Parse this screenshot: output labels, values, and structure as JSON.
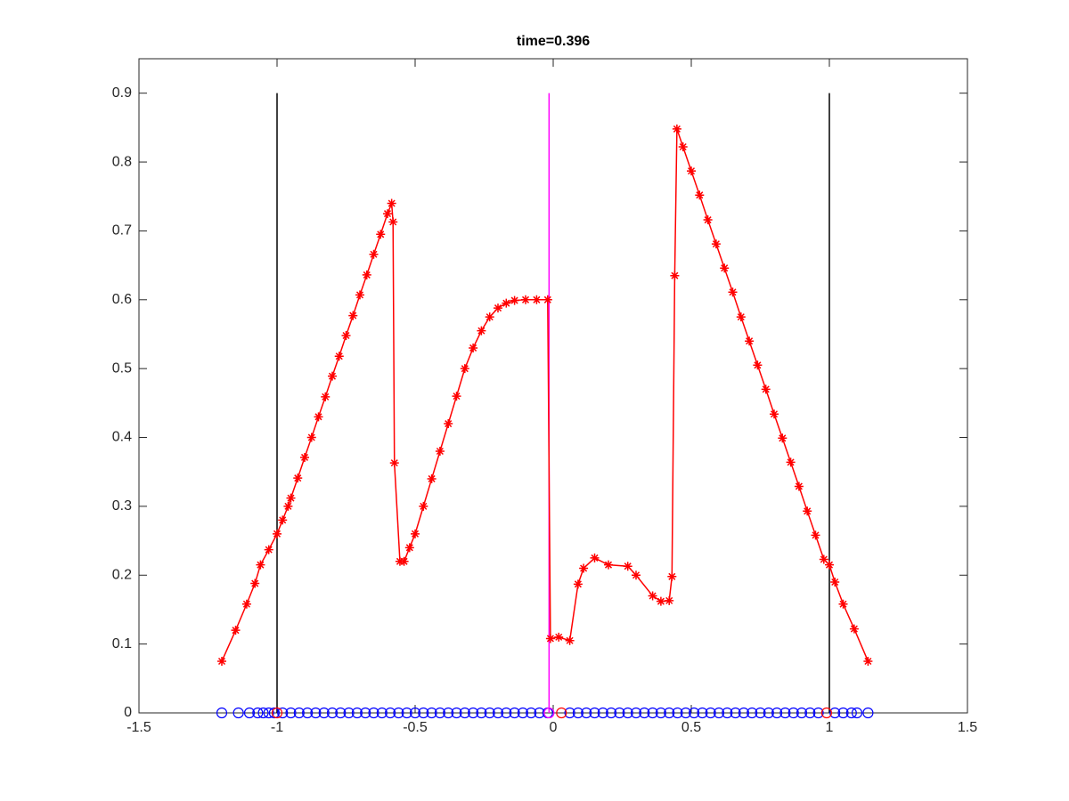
{
  "chart_data": {
    "type": "line",
    "title": "time=0.396",
    "xlim": [
      -1.5,
      1.5
    ],
    "xticks": [
      -1.5,
      -1,
      -0.5,
      0,
      0.5,
      1,
      1.5
    ],
    "ylim": [
      0,
      0.95
    ],
    "yticks": [
      0,
      0.1,
      0.2,
      0.3,
      0.4,
      0.5,
      0.6,
      0.7,
      0.8,
      0.9
    ],
    "series": [
      {
        "color": "#000000",
        "line": true,
        "x": [
          -1,
          -1
        ],
        "values": [
          0,
          0.9
        ]
      },
      {
        "color": "#000000",
        "line": true,
        "x": [
          1,
          1
        ],
        "values": [
          0,
          0.9
        ]
      },
      {
        "color": "#ff00ff",
        "line": true,
        "x": [
          -0.015,
          -0.015
        ],
        "values": [
          0,
          0.9
        ]
      },
      {
        "color": "#ff0000",
        "line": true,
        "marker": "*",
        "x": [
          -1.2,
          -1.15,
          -1.11,
          -1.08,
          -1.06,
          -1.03,
          -1.0,
          -0.98,
          -0.96,
          -0.95,
          -0.925,
          -0.9,
          -0.875,
          -0.85,
          -0.825,
          -0.8,
          -0.775,
          -0.75,
          -0.725,
          -0.7,
          -0.675,
          -0.65,
          -0.625,
          -0.6,
          -0.585,
          -0.58,
          -0.575,
          -0.555,
          -0.54,
          -0.52,
          -0.5,
          -0.47,
          -0.44,
          -0.41,
          -0.38,
          -0.35,
          -0.32,
          -0.29,
          -0.26,
          -0.23,
          -0.2,
          -0.17,
          -0.14,
          -0.1,
          -0.06,
          -0.02,
          -0.01,
          0.02,
          0.06,
          0.09,
          0.11,
          0.15,
          0.2,
          0.27,
          0.3,
          0.36,
          0.39,
          0.42,
          0.43,
          0.44,
          0.448,
          0.47,
          0.5,
          0.53,
          0.56,
          0.59,
          0.62,
          0.65,
          0.68,
          0.71,
          0.74,
          0.77,
          0.8,
          0.83,
          0.86,
          0.89,
          0.92,
          0.95,
          0.98,
          1.0,
          1.02,
          1.05,
          1.09,
          1.14
        ],
        "values": [
          0.075,
          0.12,
          0.158,
          0.188,
          0.215,
          0.237,
          0.26,
          0.28,
          0.3,
          0.312,
          0.341,
          0.371,
          0.4,
          0.43,
          0.459,
          0.489,
          0.518,
          0.548,
          0.577,
          0.607,
          0.636,
          0.666,
          0.695,
          0.725,
          0.74,
          0.713,
          0.363,
          0.22,
          0.22,
          0.24,
          0.26,
          0.3,
          0.34,
          0.38,
          0.42,
          0.46,
          0.5,
          0.53,
          0.555,
          0.575,
          0.588,
          0.595,
          0.599,
          0.6,
          0.6,
          0.6,
          0.108,
          0.11,
          0.105,
          0.187,
          0.21,
          0.225,
          0.215,
          0.213,
          0.2,
          0.17,
          0.162,
          0.163,
          0.198,
          0.635,
          0.848,
          0.822,
          0.787,
          0.752,
          0.716,
          0.681,
          0.646,
          0.611,
          0.575,
          0.54,
          0.505,
          0.47,
          0.434,
          0.399,
          0.364,
          0.329,
          0.293,
          0.258,
          0.223,
          0.215,
          0.19,
          0.158,
          0.122,
          0.075
        ]
      },
      {
        "color": "#0000ff",
        "marker": "o",
        "x": [
          -1.2,
          -1.14,
          -1.1,
          -1.07,
          -1.05,
          -1.03,
          -1.01,
          -0.98,
          -0.95,
          -0.92,
          -0.89,
          -0.86,
          -0.83,
          -0.8,
          -0.77,
          -0.74,
          -0.71,
          -0.68,
          -0.65,
          -0.62,
          -0.59,
          -0.56,
          -0.53,
          -0.5,
          -0.47,
          -0.44,
          -0.41,
          -0.38,
          -0.35,
          -0.32,
          -0.29,
          -0.26,
          -0.23,
          -0.2,
          -0.17,
          -0.14,
          -0.11,
          -0.08,
          -0.05,
          -0.02,
          0.06,
          0.09,
          0.12,
          0.15,
          0.18,
          0.21,
          0.24,
          0.27,
          0.3,
          0.33,
          0.36,
          0.39,
          0.42,
          0.45,
          0.48,
          0.51,
          0.54,
          0.57,
          0.6,
          0.63,
          0.66,
          0.69,
          0.72,
          0.75,
          0.78,
          0.81,
          0.84,
          0.87,
          0.9,
          0.93,
          0.96,
          1.02,
          1.05,
          1.08,
          1.1,
          1.14
        ],
        "values": [
          0,
          0,
          0,
          0,
          0,
          0,
          0,
          0,
          0,
          0,
          0,
          0,
          0,
          0,
          0,
          0,
          0,
          0,
          0,
          0,
          0,
          0,
          0,
          0,
          0,
          0,
          0,
          0,
          0,
          0,
          0,
          0,
          0,
          0,
          0,
          0,
          0,
          0,
          0,
          0,
          0,
          0,
          0,
          0,
          0,
          0,
          0,
          0,
          0,
          0,
          0,
          0,
          0,
          0,
          0,
          0,
          0,
          0,
          0,
          0,
          0,
          0,
          0,
          0,
          0,
          0,
          0,
          0,
          0,
          0,
          0,
          0,
          0,
          0,
          0,
          0
        ]
      },
      {
        "color": "#ff0000",
        "marker": "o",
        "x": [
          -1,
          0.03,
          0.99
        ],
        "values": [
          0,
          0,
          0
        ]
      },
      {
        "color": "#ff00ff",
        "marker": "o",
        "x": [
          -0.015
        ],
        "values": [
          0
        ]
      }
    ]
  }
}
